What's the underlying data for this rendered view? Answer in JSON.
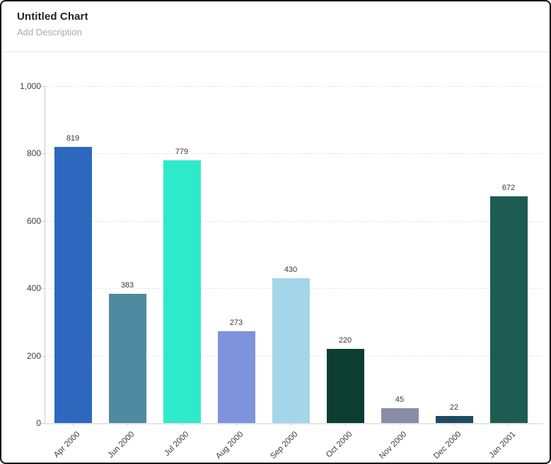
{
  "header": {
    "title": "Untitled Chart",
    "subtitle": "Add Description"
  },
  "chart_data": {
    "type": "bar",
    "title": "Untitled Chart",
    "xlabel": "",
    "ylabel": "",
    "categories": [
      "Apr 2000",
      "Jun 2000",
      "Jul 2000",
      "Aug 2000",
      "Sep 2000",
      "Oct 2000",
      "Nov 2000",
      "Dec 2000",
      "Jan 2001"
    ],
    "values": [
      819,
      383,
      779,
      273,
      430,
      220,
      45,
      22,
      672
    ],
    "bar_colors": [
      "#2E68BE",
      "#4F8AA0",
      "#2FE9CB",
      "#7E93DC",
      "#A5D5E8",
      "#0D3D31",
      "#8A8BA8",
      "#1E4B63",
      "#1D5B53"
    ],
    "ylim": [
      0,
      1000
    ],
    "yticks": [
      0,
      200,
      400,
      600,
      800,
      1000
    ],
    "ytick_labels": [
      "0",
      "200",
      "400",
      "600",
      "800",
      "1,000"
    ],
    "grid": true,
    "gridline_style": "dashed",
    "legend": false,
    "value_labels_shown": true,
    "x_label_rotation_deg": -45
  }
}
